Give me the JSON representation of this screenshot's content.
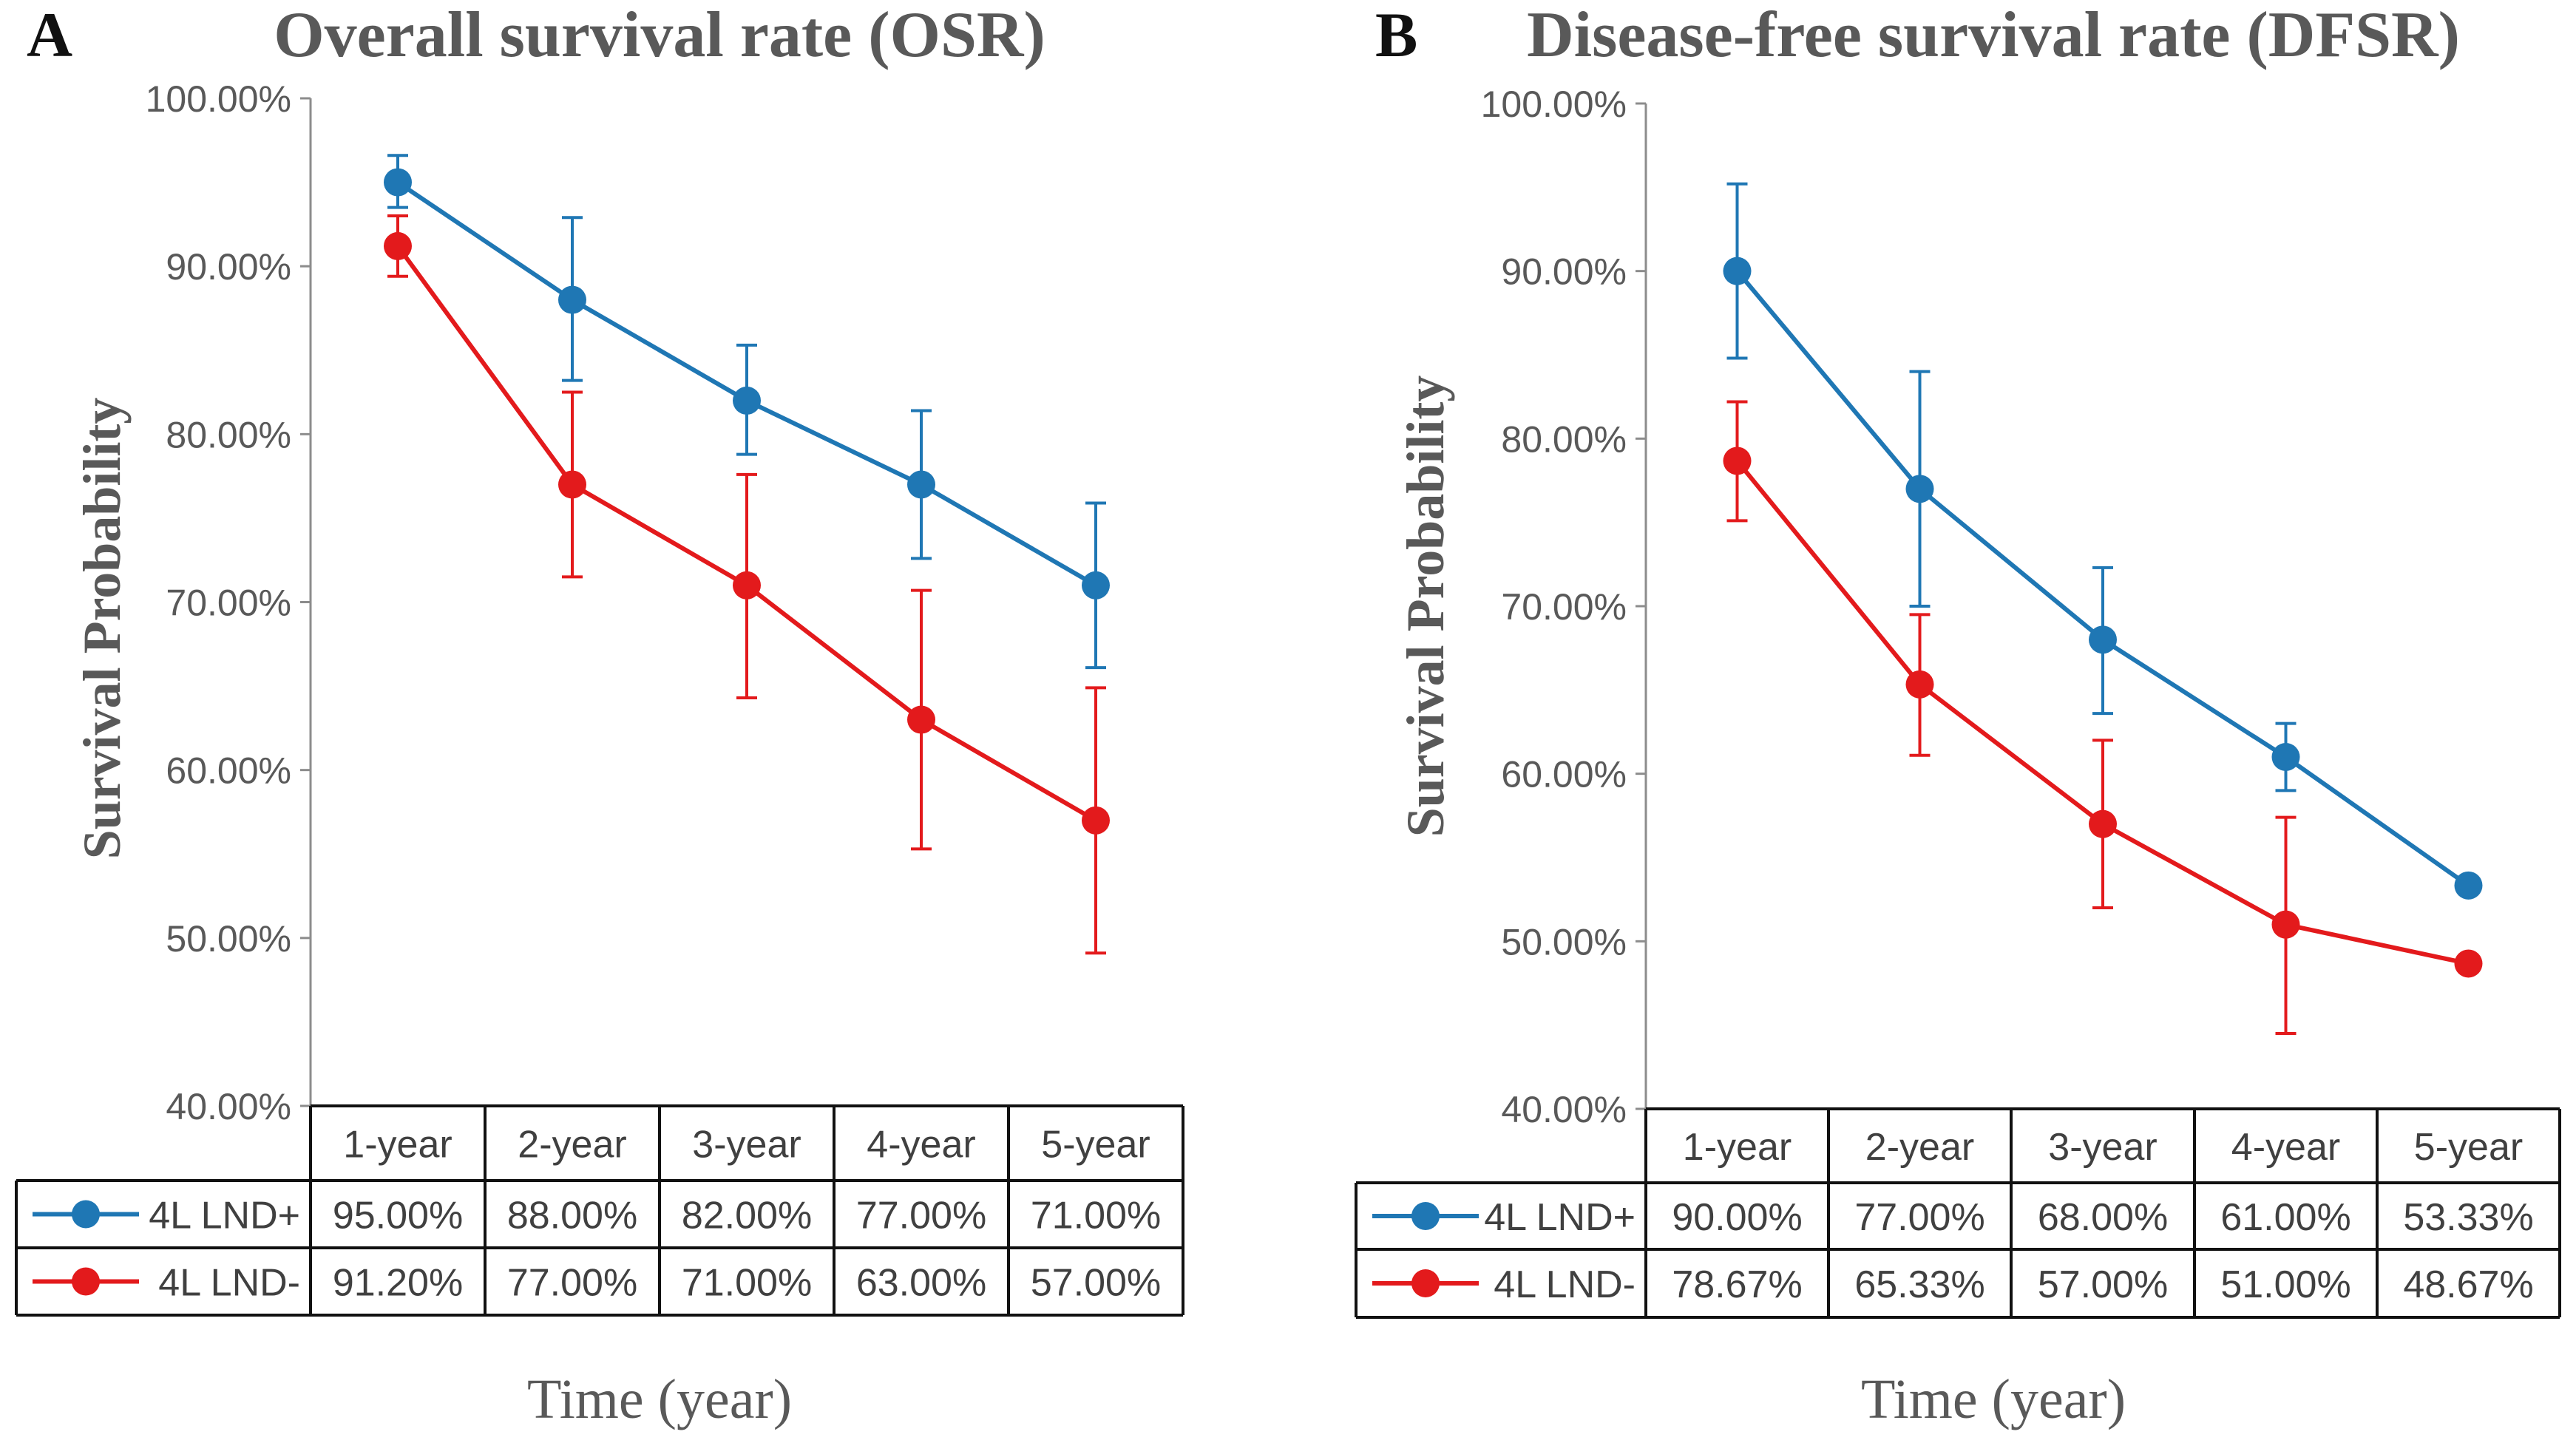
{
  "chart_data": [
    {
      "type": "line",
      "panel_label": "A",
      "title": "Overall survival rate (OSR)",
      "xlabel": "Time (year)",
      "ylabel": "Survival Probability",
      "categories": [
        "1-year",
        "2-year",
        "3-year",
        "4-year",
        "5-year"
      ],
      "ylim": [
        40,
        100
      ],
      "yticks": [
        "100.00%",
        "90.00%",
        "80.00%",
        "70.00%",
        "60.00%",
        "50.00%",
        "40.00%"
      ],
      "ytick_values": [
        100,
        90,
        80,
        70,
        60,
        50,
        40
      ],
      "grid": false,
      "series": [
        {
          "name": "4L LND+",
          "color": "#1f77b4",
          "values": [
            95.0,
            88.0,
            82.0,
            77.0,
            71.0
          ],
          "labels": [
            "95.00%",
            "88.00%",
            "82.00%",
            "77.00%",
            "71.00%"
          ],
          "err_upper": [
            96.6,
            92.9,
            85.3,
            81.4,
            75.9
          ],
          "err_lower": [
            93.5,
            83.2,
            78.8,
            72.6,
            66.1
          ]
        },
        {
          "name": "4L LND-",
          "color": "#e31a1c",
          "values": [
            91.2,
            77.0,
            71.0,
            63.0,
            57.0
          ],
          "labels": [
            "91.20%",
            "77.00%",
            "71.00%",
            "63.00%",
            "57.00%"
          ],
          "err_upper": [
            93.0,
            82.5,
            77.6,
            70.7,
            64.9
          ],
          "err_lower": [
            89.4,
            71.5,
            64.3,
            55.3,
            49.1
          ]
        }
      ]
    },
    {
      "type": "line",
      "panel_label": "B",
      "title": "Disease-free survival rate (DFSR)",
      "xlabel": "Time (year)",
      "ylabel": "Survival Probability",
      "categories": [
        "1-year",
        "2-year",
        "3-year",
        "4-year",
        "5-year"
      ],
      "ylim": [
        40,
        100
      ],
      "yticks": [
        "100.00%",
        "90.00%",
        "80.00%",
        "70.00%",
        "60.00%",
        "50.00%",
        "40.00%"
      ],
      "ytick_values": [
        100,
        90,
        80,
        70,
        60,
        50,
        40
      ],
      "grid": false,
      "series": [
        {
          "name": "4L LND+",
          "color": "#1f77b4",
          "values": [
            90.0,
            77.0,
            68.0,
            61.0,
            53.33
          ],
          "labels": [
            "90.00%",
            "77.00%",
            "68.00%",
            "61.00%",
            "53.33%"
          ],
          "err_upper": [
            95.2,
            84.0,
            72.3,
            63.0,
            null
          ],
          "err_lower": [
            84.8,
            70.0,
            63.6,
            59.0,
            null
          ]
        },
        {
          "name": "4L LND-",
          "color": "#e31a1c",
          "values": [
            78.67,
            65.33,
            57.0,
            51.0,
            48.67
          ],
          "labels": [
            "78.67%",
            "65.33%",
            "57.00%",
            "51.00%",
            "48.67%"
          ],
          "err_upper": [
            82.2,
            69.5,
            62.0,
            57.4,
            null
          ],
          "err_lower": [
            75.1,
            61.1,
            52.0,
            44.5,
            null
          ]
        }
      ]
    }
  ]
}
